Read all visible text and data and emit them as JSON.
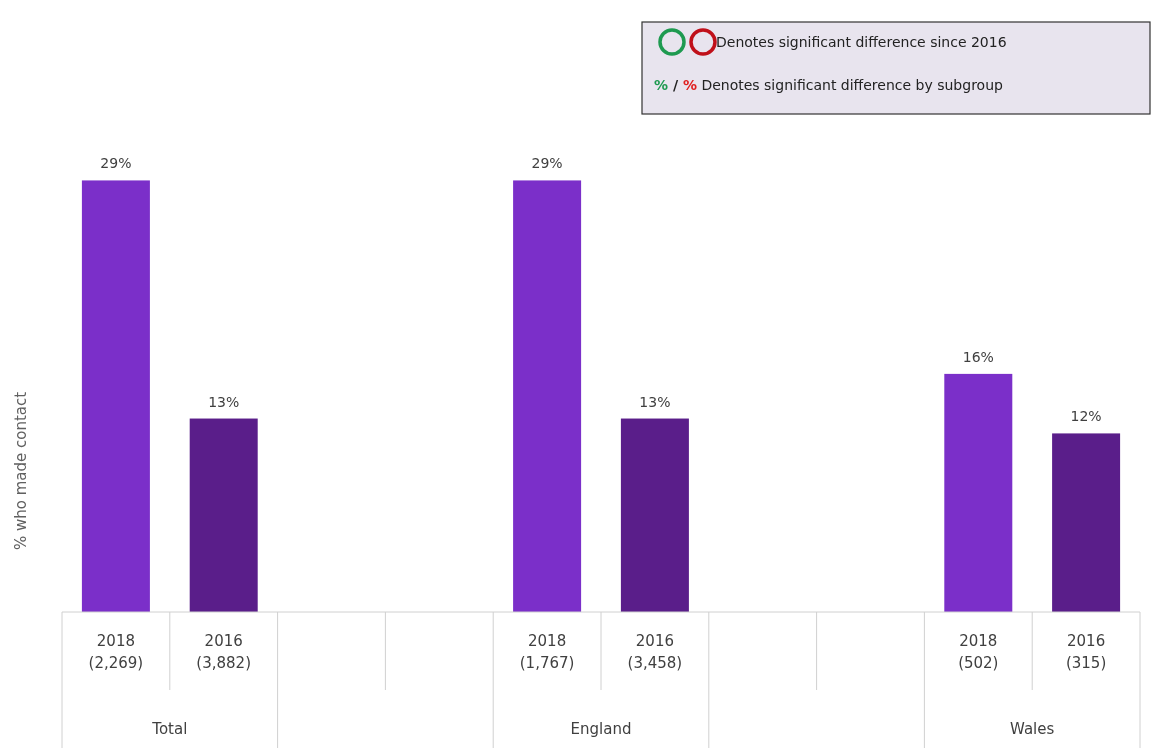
{
  "chart_data": {
    "type": "bar",
    "ylabel": "% who made contact",
    "categories": [
      "2018\n(2,269)",
      "2016\n(3,882)",
      null,
      null,
      "2018\n(1,767)",
      "2016\n(3,458)",
      null,
      null,
      "2018\n(502)",
      "2016\n(315)"
    ],
    "values": [
      29,
      13,
      null,
      null,
      29,
      13,
      null,
      null,
      16,
      12
    ],
    "colors": [
      "#7b2fc9",
      "#5a1e8a",
      null,
      null,
      "#7b2fc9",
      "#5a1e8a",
      null,
      null,
      "#7b2fc9",
      "#5a1e8a"
    ],
    "value_labels": [
      "29%",
      "13%",
      null,
      null,
      "29%",
      "13%",
      null,
      null,
      "16%",
      "12%"
    ],
    "annotations": [
      "Total",
      "England",
      "Wales",
      "Denotes significant difference since 2016",
      "% / % Denotes significant difference by subgroup"
    ]
  }
}
